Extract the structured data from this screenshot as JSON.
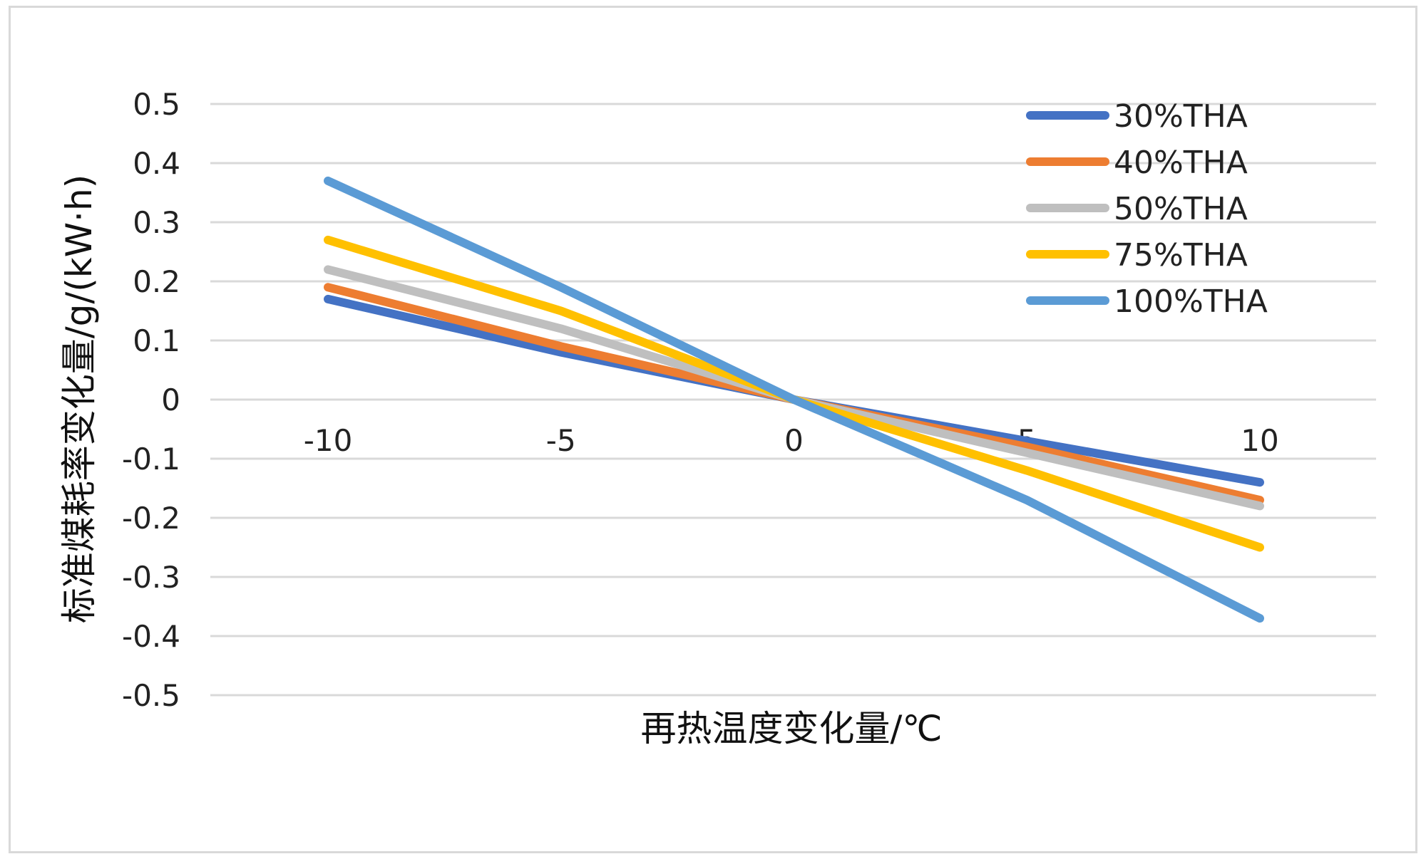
{
  "chart_data": {
    "type": "line",
    "title": "",
    "xlabel": "再热温度变化量/℃",
    "ylabel": "标准煤耗率变化量/g/(kW·h)",
    "x": [
      -10,
      -5,
      0,
      5,
      10
    ],
    "x_tick_labels": [
      "-10",
      "-5",
      "0",
      "5",
      "10"
    ],
    "ylim": [
      -0.5,
      0.5
    ],
    "y_ticks": [
      0.5,
      0.4,
      0.3,
      0.2,
      0.1,
      0,
      -0.1,
      -0.2,
      -0.3,
      -0.4,
      -0.5
    ],
    "y_tick_labels": [
      "0.5",
      "0.4",
      "0.3",
      "0.2",
      "0.1",
      "0",
      "-0.1",
      "-0.2",
      "-0.3",
      "-0.4",
      "-0.5"
    ],
    "grid": true,
    "legend_position": "top-right",
    "series": [
      {
        "name": "30%THA",
        "color": "#4472c4",
        "values": [
          0.17,
          0.08,
          0,
          -0.07,
          -0.14
        ]
      },
      {
        "name": "40%THA",
        "color": "#ed7d31",
        "values": [
          0.19,
          0.09,
          0,
          -0.08,
          -0.17
        ]
      },
      {
        "name": "50%THA",
        "color": "#bfbfbf",
        "values": [
          0.22,
          0.12,
          0,
          -0.09,
          -0.18
        ]
      },
      {
        "name": "75%THA",
        "color": "#ffc000",
        "values": [
          0.27,
          0.15,
          0,
          -0.12,
          -0.25
        ]
      },
      {
        "name": "100%THA",
        "color": "#5b9bd5",
        "values": [
          0.37,
          0.19,
          0,
          -0.17,
          -0.37
        ]
      }
    ]
  }
}
